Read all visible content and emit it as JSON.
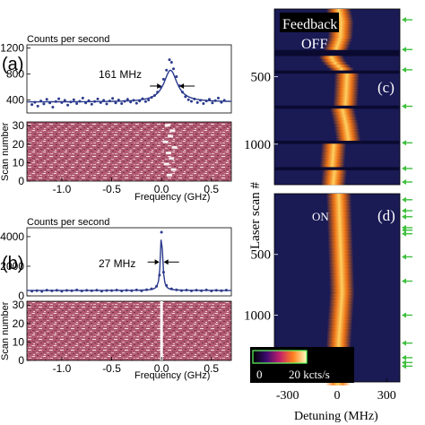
{
  "chart_data": [
    {
      "panel": "(a)",
      "type": "scatter",
      "title": "Counts per second",
      "annotation": "161 MHz",
      "y_ticks": [
        400,
        800,
        1200
      ],
      "ylim": [
        200,
        1250
      ],
      "xlim": [
        -1.35,
        0.7
      ],
      "series": [
        {
          "values": [
            [
              -1.3,
              330
            ],
            [
              -1.27,
              365
            ],
            [
              -1.24,
              305
            ],
            [
              -1.21,
              385
            ],
            [
              -1.18,
              340
            ],
            [
              -1.15,
              410
            ],
            [
              -1.12,
              355
            ],
            [
              -1.09,
              290
            ],
            [
              -1.06,
              375
            ],
            [
              -1.03,
              420
            ],
            [
              -1.0,
              360
            ],
            [
              -0.97,
              395
            ],
            [
              -0.94,
              320
            ],
            [
              -0.91,
              370
            ],
            [
              -0.88,
              405
            ],
            [
              -0.85,
              345
            ],
            [
              -0.82,
              380
            ],
            [
              -0.79,
              430
            ],
            [
              -0.76,
              355
            ],
            [
              -0.73,
              390
            ],
            [
              -0.7,
              335
            ],
            [
              -0.67,
              375
            ],
            [
              -0.64,
              415
            ],
            [
              -0.61,
              360
            ],
            [
              -0.58,
              395
            ],
            [
              -0.55,
              340
            ],
            [
              -0.52,
              385
            ],
            [
              -0.49,
              425
            ],
            [
              -0.46,
              355
            ],
            [
              -0.43,
              400
            ],
            [
              -0.4,
              345
            ],
            [
              -0.37,
              380
            ],
            [
              -0.34,
              410
            ],
            [
              -0.31,
              370
            ],
            [
              -0.28,
              395
            ],
            [
              -0.25,
              350
            ],
            [
              -0.22,
              385
            ],
            [
              -0.19,
              420
            ],
            [
              -0.16,
              375
            ],
            [
              -0.13,
              400
            ],
            [
              -0.1,
              440
            ],
            [
              -0.07,
              470
            ],
            [
              -0.04,
              520
            ],
            [
              -0.01,
              600
            ],
            [
              0.02,
              720
            ],
            [
              0.05,
              860
            ],
            [
              0.08,
              1020
            ],
            [
              0.1,
              980
            ],
            [
              0.12,
              880
            ],
            [
              0.15,
              760
            ],
            [
              0.18,
              620
            ],
            [
              0.21,
              520
            ],
            [
              0.24,
              450
            ],
            [
              0.27,
              405
            ],
            [
              0.3,
              380
            ],
            [
              0.33,
              415
            ],
            [
              0.36,
              360
            ],
            [
              0.39,
              395
            ],
            [
              0.42,
              345
            ],
            [
              0.45,
              385
            ],
            [
              0.48,
              410
            ],
            [
              0.51,
              355
            ],
            [
              0.54,
              390
            ],
            [
              0.57,
              430
            ],
            [
              0.6,
              365
            ],
            [
              0.63,
              395
            ]
          ]
        },
        {
          "type": "line",
          "peak_value": 860
        }
      ]
    },
    {
      "panel": "(a) lower",
      "type": "heatmap",
      "xlabel": "Frequency (GHz)",
      "ylabel": "Scan number",
      "x_ticks": [
        "-1.0",
        "-0.5",
        "0.0",
        "0.5"
      ],
      "y_ticks": [
        0,
        10,
        20,
        30
      ],
      "ylim": [
        0,
        32
      ],
      "xlim": [
        -1.35,
        0.7
      ]
    },
    {
      "panel": "(b)",
      "type": "scatter",
      "title": "Counts per second",
      "annotation": "27 MHz",
      "y_ticks": [
        0,
        2000,
        4000
      ],
      "ylim": [
        0,
        4600
      ],
      "xlim": [
        -1.35,
        0.7
      ],
      "series": [
        {
          "values": [
            [
              -1.3,
              320
            ],
            [
              -1.25,
              360
            ],
            [
              -1.2,
              300
            ],
            [
              -1.15,
              390
            ],
            [
              -1.1,
              340
            ],
            [
              -1.05,
              380
            ],
            [
              -1.0,
              310
            ],
            [
              -0.95,
              370
            ],
            [
              -0.9,
              350
            ],
            [
              -0.85,
              400
            ],
            [
              -0.8,
              330
            ],
            [
              -0.75,
              375
            ],
            [
              -0.7,
              345
            ],
            [
              -0.65,
              390
            ],
            [
              -0.6,
              320
            ],
            [
              -0.55,
              365
            ],
            [
              -0.5,
              355
            ],
            [
              -0.45,
              395
            ],
            [
              -0.4,
              335
            ],
            [
              -0.35,
              380
            ],
            [
              -0.3,
              350
            ],
            [
              -0.25,
              400
            ],
            [
              -0.2,
              340
            ],
            [
              -0.15,
              420
            ],
            [
              -0.1,
              480
            ],
            [
              -0.05,
              650
            ],
            [
              -0.02,
              1400
            ],
            [
              0.0,
              4300
            ],
            [
              0.02,
              1600
            ],
            [
              0.05,
              700
            ],
            [
              0.1,
              480
            ],
            [
              0.15,
              410
            ],
            [
              0.2,
              360
            ],
            [
              0.25,
              395
            ],
            [
              0.3,
              340
            ],
            [
              0.35,
              385
            ],
            [
              0.4,
              350
            ],
            [
              0.45,
              400
            ],
            [
              0.5,
              335
            ],
            [
              0.55,
              375
            ],
            [
              0.6,
              345
            ],
            [
              0.65,
              390
            ]
          ]
        },
        {
          "type": "line",
          "peak_value": 4200
        }
      ]
    },
    {
      "panel": "(b) lower",
      "type": "heatmap",
      "xlabel": "Frequency (GHz)",
      "ylabel": "Scan number",
      "x_ticks": [
        "-1.0",
        "-0.5",
        "0.0",
        "0.5"
      ],
      "y_ticks": [
        0,
        10,
        20,
        30
      ],
      "ylim": [
        0,
        32
      ],
      "xlim": [
        -1.35,
        0.7
      ]
    },
    {
      "panel": "(c)",
      "type": "heatmap",
      "labels": [
        "Feedback",
        "OFF"
      ],
      "ylabel": "Laser scan #",
      "y_ticks": [
        500,
        1000
      ],
      "ylim": [
        0,
        1300
      ],
      "xlim": [
        -380,
        380
      ],
      "gaps": [
        300,
        330,
        450,
        470,
        700,
        720,
        970,
        995,
        1160,
        1185
      ],
      "arrow_scans": [
        80,
        300,
        450,
        720,
        990,
        1180,
        1280
      ],
      "line_center": [
        [
          0,
          10
        ],
        [
          80,
          25
        ],
        [
          200,
          20
        ],
        [
          250,
          5
        ],
        [
          300,
          -10
        ],
        [
          330,
          -40
        ],
        [
          380,
          -20
        ],
        [
          450,
          40
        ],
        [
          470,
          60
        ],
        [
          600,
          55
        ],
        [
          700,
          50
        ],
        [
          720,
          30
        ],
        [
          850,
          55
        ],
        [
          970,
          70
        ],
        [
          995,
          -20
        ],
        [
          1160,
          -30
        ],
        [
          1185,
          -15
        ],
        [
          1300,
          -25
        ]
      ]
    },
    {
      "panel": "(d)",
      "type": "heatmap",
      "labels": [
        "ON"
      ],
      "ylabel": "Laser scan #",
      "xlabel": "Detuning (MHz)",
      "y_ticks": [
        500,
        1000
      ],
      "x_ticks": [
        "-300",
        "0",
        "300"
      ],
      "ylim": [
        0,
        1550
      ],
      "xlim": [
        -380,
        380
      ],
      "line_center": [
        [
          0,
          10
        ],
        [
          400,
          20
        ],
        [
          800,
          30
        ],
        [
          1200,
          10
        ],
        [
          1550,
          5
        ]
      ],
      "arrow_scans": [
        50,
        140,
        190,
        280,
        300,
        330,
        520,
        720,
        1000,
        1230,
        1350,
        1390,
        1420
      ],
      "colorbar": {
        "min_label": "0",
        "max_label": "20 kcts/s"
      }
    }
  ],
  "colors": {
    "data_blue": "#2b3a8c",
    "panel_pink": "#a85a6e",
    "arrow_green": "#40c040"
  }
}
